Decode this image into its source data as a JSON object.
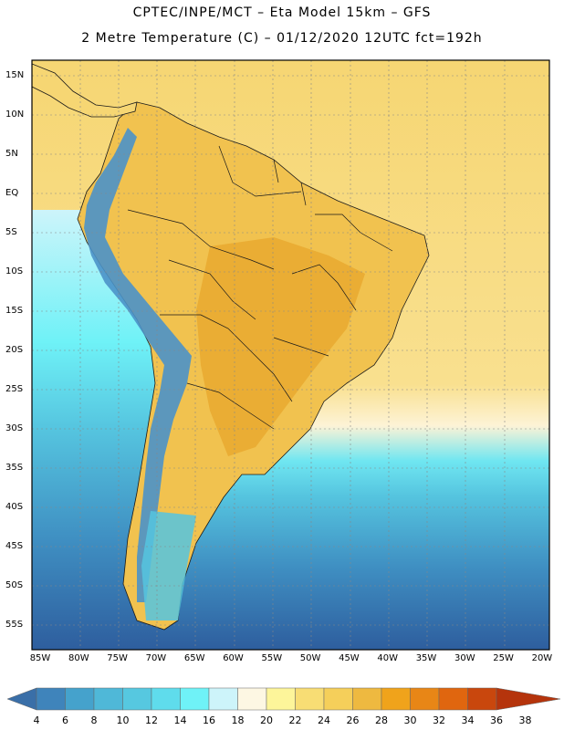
{
  "title_line1": "CPTEC/INPE/MCT –  Eta Model 15km – GFS",
  "title_line2": "2 Metre Temperature (C) – 01/12/2020 12UTC fct=192h",
  "lat_labels": [
    "15N",
    "10N",
    "5N",
    "EQ",
    "5S",
    "10S",
    "15S",
    "20S",
    "25S",
    "30S",
    "35S",
    "40S",
    "45S",
    "50S",
    "55S"
  ],
  "lon_labels": [
    "85W",
    "80W",
    "75W",
    "70W",
    "65W",
    "60W",
    "55W",
    "50W",
    "45W",
    "40W",
    "35W",
    "30W",
    "25W",
    "20W"
  ],
  "colorbar": {
    "labels": [
      "4",
      "6",
      "8",
      "10",
      "12",
      "14",
      "16",
      "18",
      "20",
      "22",
      "24",
      "26",
      "28",
      "30",
      "32",
      "34",
      "36",
      "38"
    ],
    "colors": [
      "#3a6fa8",
      "#3f84bb",
      "#45a2cc",
      "#4fb8d8",
      "#56c8e0",
      "#5fdcec",
      "#6ff2f7",
      "#cdf4fa",
      "#fdf7e3",
      "#fdf59a",
      "#f8dd74",
      "#f5cf5a",
      "#eeb940",
      "#f0a31b",
      "#e88616",
      "#e0660f",
      "#c9470d",
      "#b5340c"
    ]
  },
  "map_colors": {
    "ocean_cold": "#2e5e9e",
    "ocean_cool": "#3f8fc2",
    "ocean_mid": "#55c4df",
    "ocean_warm": "#6fe6f1",
    "sea_pale": "#fdf3d6",
    "sea_yellow": "#fbe6a0",
    "sea_gold": "#f6d673",
    "land_warm": "#f1c24f",
    "land_hot": "#e9a82d",
    "andes": "#4b92c8"
  }
}
